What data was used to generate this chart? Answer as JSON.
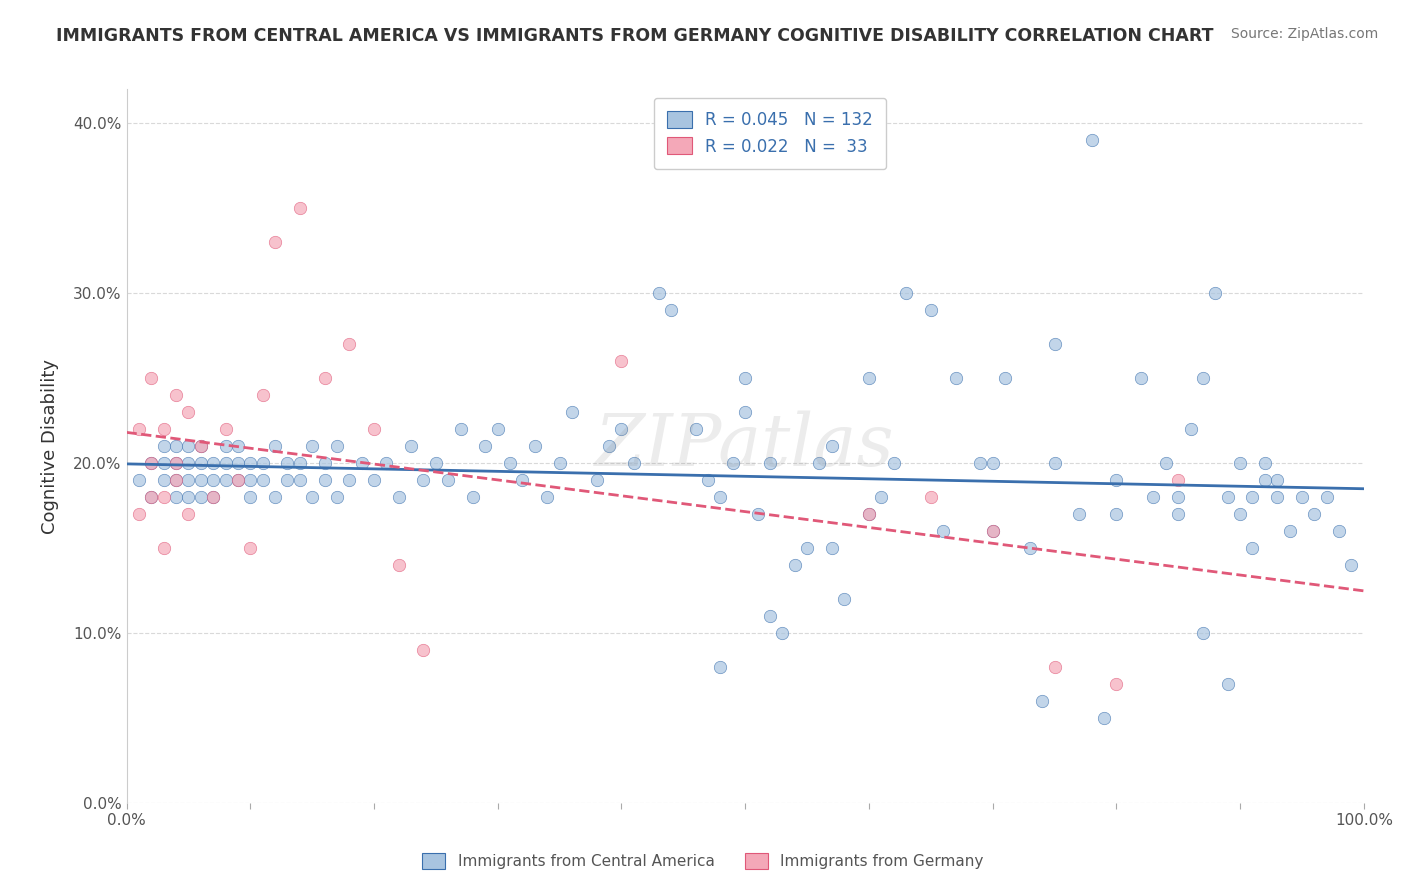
{
  "title": "IMMIGRANTS FROM CENTRAL AMERICA VS IMMIGRANTS FROM GERMANY COGNITIVE DISABILITY CORRELATION CHART",
  "source_text": "Source: ZipAtlas.com",
  "ylabel": "Cognitive Disability",
  "xlabel": "",
  "watermark": "ZIPatlas",
  "blue_R": 0.045,
  "blue_N": 132,
  "pink_R": 0.022,
  "pink_N": 33,
  "blue_label": "Immigrants from Central America",
  "pink_label": "Immigrants from Germany",
  "xlim": [
    0.0,
    1.0
  ],
  "ylim": [
    0.0,
    0.42
  ],
  "yticks": [
    0.0,
    0.1,
    0.2,
    0.3,
    0.4
  ],
  "xticks": [
    0.0,
    0.1,
    0.2,
    0.3,
    0.4,
    0.5,
    0.6,
    0.7,
    0.8,
    0.9,
    1.0
  ],
  "blue_color": "#a8c4e0",
  "blue_line_color": "#3a6fad",
  "pink_color": "#f4a8b8",
  "pink_line_color": "#e05878",
  "legend_R_color": "#3a6fad",
  "background_color": "#ffffff",
  "grid_color": "#d0d0d0",
  "title_color": "#333333",
  "blue_x": [
    0.01,
    0.02,
    0.02,
    0.03,
    0.03,
    0.03,
    0.04,
    0.04,
    0.04,
    0.04,
    0.05,
    0.05,
    0.05,
    0.05,
    0.06,
    0.06,
    0.06,
    0.06,
    0.07,
    0.07,
    0.07,
    0.08,
    0.08,
    0.08,
    0.09,
    0.09,
    0.09,
    0.1,
    0.1,
    0.1,
    0.11,
    0.11,
    0.12,
    0.12,
    0.13,
    0.13,
    0.14,
    0.14,
    0.15,
    0.15,
    0.16,
    0.16,
    0.17,
    0.17,
    0.18,
    0.19,
    0.2,
    0.21,
    0.22,
    0.23,
    0.24,
    0.25,
    0.26,
    0.27,
    0.28,
    0.29,
    0.3,
    0.31,
    0.32,
    0.33,
    0.34,
    0.35,
    0.36,
    0.38,
    0.39,
    0.4,
    0.41,
    0.43,
    0.44,
    0.46,
    0.47,
    0.48,
    0.49,
    0.5,
    0.51,
    0.52,
    0.53,
    0.54,
    0.56,
    0.57,
    0.58,
    0.6,
    0.61,
    0.63,
    0.65,
    0.67,
    0.69,
    0.71,
    0.73,
    0.75,
    0.77,
    0.78,
    0.8,
    0.82,
    0.84,
    0.86,
    0.87,
    0.88,
    0.89,
    0.9,
    0.91,
    0.92,
    0.93,
    0.94,
    0.5,
    0.55,
    0.6,
    0.48,
    0.52,
    0.57,
    0.62,
    0.66,
    0.7,
    0.74,
    0.79,
    0.83,
    0.85,
    0.87,
    0.89,
    0.91,
    0.93,
    0.95,
    0.96,
    0.97,
    0.98,
    0.99,
    0.7,
    0.75,
    0.8,
    0.85,
    0.9,
    0.92
  ],
  "blue_y": [
    0.19,
    0.2,
    0.18,
    0.2,
    0.19,
    0.21,
    0.2,
    0.19,
    0.18,
    0.21,
    0.2,
    0.19,
    0.18,
    0.21,
    0.19,
    0.2,
    0.18,
    0.21,
    0.19,
    0.2,
    0.18,
    0.2,
    0.19,
    0.21,
    0.2,
    0.19,
    0.21,
    0.18,
    0.2,
    0.19,
    0.19,
    0.2,
    0.18,
    0.21,
    0.19,
    0.2,
    0.19,
    0.2,
    0.18,
    0.21,
    0.19,
    0.2,
    0.18,
    0.21,
    0.19,
    0.2,
    0.19,
    0.2,
    0.18,
    0.21,
    0.19,
    0.2,
    0.19,
    0.22,
    0.18,
    0.21,
    0.22,
    0.2,
    0.19,
    0.21,
    0.18,
    0.2,
    0.23,
    0.19,
    0.21,
    0.22,
    0.2,
    0.3,
    0.29,
    0.22,
    0.19,
    0.18,
    0.2,
    0.25,
    0.17,
    0.2,
    0.1,
    0.14,
    0.2,
    0.21,
    0.12,
    0.25,
    0.18,
    0.3,
    0.29,
    0.25,
    0.2,
    0.25,
    0.15,
    0.27,
    0.17,
    0.39,
    0.17,
    0.25,
    0.2,
    0.22,
    0.25,
    0.3,
    0.18,
    0.17,
    0.18,
    0.2,
    0.18,
    0.16,
    0.23,
    0.15,
    0.17,
    0.08,
    0.11,
    0.15,
    0.2,
    0.16,
    0.16,
    0.06,
    0.05,
    0.18,
    0.17,
    0.1,
    0.07,
    0.15,
    0.19,
    0.18,
    0.17,
    0.18,
    0.16,
    0.14,
    0.2,
    0.2,
    0.19,
    0.18,
    0.2,
    0.19
  ],
  "pink_x": [
    0.01,
    0.01,
    0.02,
    0.02,
    0.02,
    0.03,
    0.03,
    0.03,
    0.04,
    0.04,
    0.04,
    0.05,
    0.05,
    0.06,
    0.07,
    0.08,
    0.09,
    0.1,
    0.11,
    0.12,
    0.14,
    0.16,
    0.18,
    0.2,
    0.22,
    0.24,
    0.4,
    0.6,
    0.65,
    0.7,
    0.75,
    0.8,
    0.85
  ],
  "pink_y": [
    0.17,
    0.22,
    0.18,
    0.2,
    0.25,
    0.18,
    0.22,
    0.15,
    0.2,
    0.24,
    0.19,
    0.23,
    0.17,
    0.21,
    0.18,
    0.22,
    0.19,
    0.15,
    0.24,
    0.33,
    0.35,
    0.25,
    0.27,
    0.22,
    0.14,
    0.09,
    0.26,
    0.17,
    0.18,
    0.16,
    0.08,
    0.07,
    0.19
  ]
}
